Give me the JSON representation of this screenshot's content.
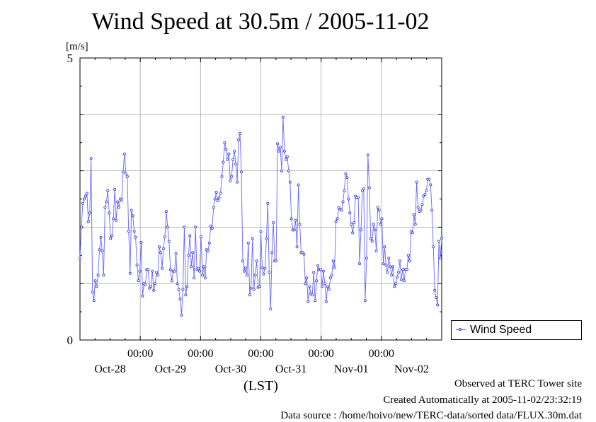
{
  "chart_data": {
    "type": "line",
    "title": "Wind Speed at 30.5m / 2005-11-02",
    "ylabel": "[m/s]",
    "xlabel": "(LST)",
    "ylim": [
      0,
      5
    ],
    "y_ticks": [
      "0",
      "5"
    ],
    "x_tick_times": [
      "00:00",
      "00:00",
      "00:00",
      "00:00",
      "00:00"
    ],
    "x_day_labels": [
      "Oct-28",
      "Oct-29",
      "Oct-30",
      "Oct-31",
      "Nov-01",
      "Nov-02"
    ],
    "xlim_days": [
      0,
      6
    ],
    "grid": true,
    "legend_position": "right",
    "series": [
      {
        "name": "Wind Speed",
        "color": "#3333cc",
        "values": [
          1.45,
          2.0,
          2.42,
          2.5,
          2.55,
          2.6,
          2.1,
          2.25,
          3.22,
          0.85,
          0.7,
          1.05,
          0.95,
          1.15,
          1.6,
          1.82,
          1.58,
          1.15,
          2.35,
          2.45,
          2.65,
          2.25,
          1.8,
          1.85,
          2.15,
          2.67,
          2.12,
          2.45,
          2.35,
          2.5,
          2.48,
          2.98,
          3.3,
          2.95,
          2.9,
          1.93,
          1.18,
          2.3,
          2.2,
          1.93,
          1.82,
          1.33,
          1.05,
          1.22,
          1.73,
          0.78,
          1.0,
          0.98,
          1.25,
          1.25,
          0.92,
          0.95,
          1.22,
          0.88,
          1.0,
          1.2,
          1.15,
          1.65,
          1.55,
          1.27,
          1.62,
          1.83,
          2.28,
          2.0,
          1.75,
          1.25,
          1.05,
          1.22,
          1.22,
          1.53,
          1.0,
          0.9,
          0.73,
          0.44,
          0.9,
          2.0,
          0.8,
          0.95,
          1.5,
          1.85,
          1.3,
          1.55,
          1.1,
          2.0,
          1.25,
          1.27,
          1.22,
          1.83,
          1.15,
          1.3,
          1.1,
          1.6,
          1.58,
          1.72,
          2.02,
          1.98,
          2.35,
          2.5,
          2.62,
          2.47,
          2.52,
          2.6,
          2.9,
          3.15,
          3.5,
          3.38,
          3.2,
          3.3,
          2.82,
          2.9,
          3.2,
          3.35,
          3.12,
          2.8,
          3.55,
          3.66,
          2.98,
          1.4,
          1.22,
          1.28,
          1.15,
          1.72,
          0.8,
          0.92,
          1.8,
          0.9,
          1.15,
          1.4,
          0.93,
          0.95,
          1.92,
          1.28,
          1.17,
          1.27,
          1.8,
          2.42,
          1.2,
          0.55,
          1.55,
          2.08,
          1.4,
          1.4,
          3.48,
          3.35,
          3.42,
          3.0,
          3.95,
          3.35,
          3.2,
          3.25,
          3.0,
          2.8,
          2.15,
          1.95,
          1.95,
          2.12,
          1.65,
          2.75,
          2.05,
          1.55,
          1.55,
          1.52,
          1.0,
          1.1,
          0.68,
          0.95,
          0.82,
          0.8,
          1.2,
          0.7,
          1.05,
          1.32,
          1.25,
          1.25,
          0.95,
          1.22,
          1.0,
          0.68,
          0.95,
          0.9,
          1.1,
          1.15,
          1.4,
          1.28,
          2.1,
          2.15,
          2.35,
          2.32,
          2.3,
          2.45,
          2.65,
          2.95,
          2.88,
          2.5,
          2.25,
          2.05,
          1.9,
          2.08,
          2.55,
          2.52,
          2.53,
          1.35,
          1.95,
          2.65,
          2.68,
          0.7,
          1.45,
          3.28,
          2.7,
          1.8,
          1.75,
          2.05,
          1.95,
          1.58,
          2.35,
          2.3,
          2.05,
          2.15,
          1.35,
          1.65,
          1.33,
          1.2,
          1.45,
          1.3,
          1.15,
          1.3,
          0.95,
          1.0,
          1.12,
          1.2,
          1.4,
          1.07,
          1.25,
          1.05,
          1.25,
          1.25,
          1.5,
          1.4,
          1.92,
          1.9,
          2.22,
          2.05,
          2.8,
          2.35,
          2.28,
          2.3,
          2.4,
          2.55,
          2.58,
          2.65,
          2.85,
          2.85,
          2.75,
          2.3,
          1.65,
          0.88,
          0.75,
          0.62,
          1.75,
          1.45,
          1.8
        ]
      }
    ]
  },
  "footer": {
    "observed": "Observed at TERC Tower site",
    "created": "Created Automatically at 2005-11-02/23:32:19",
    "source": "Data source : /home/hoivo/new/TERC-data/sorted  data/FLUX.30m.dat"
  }
}
